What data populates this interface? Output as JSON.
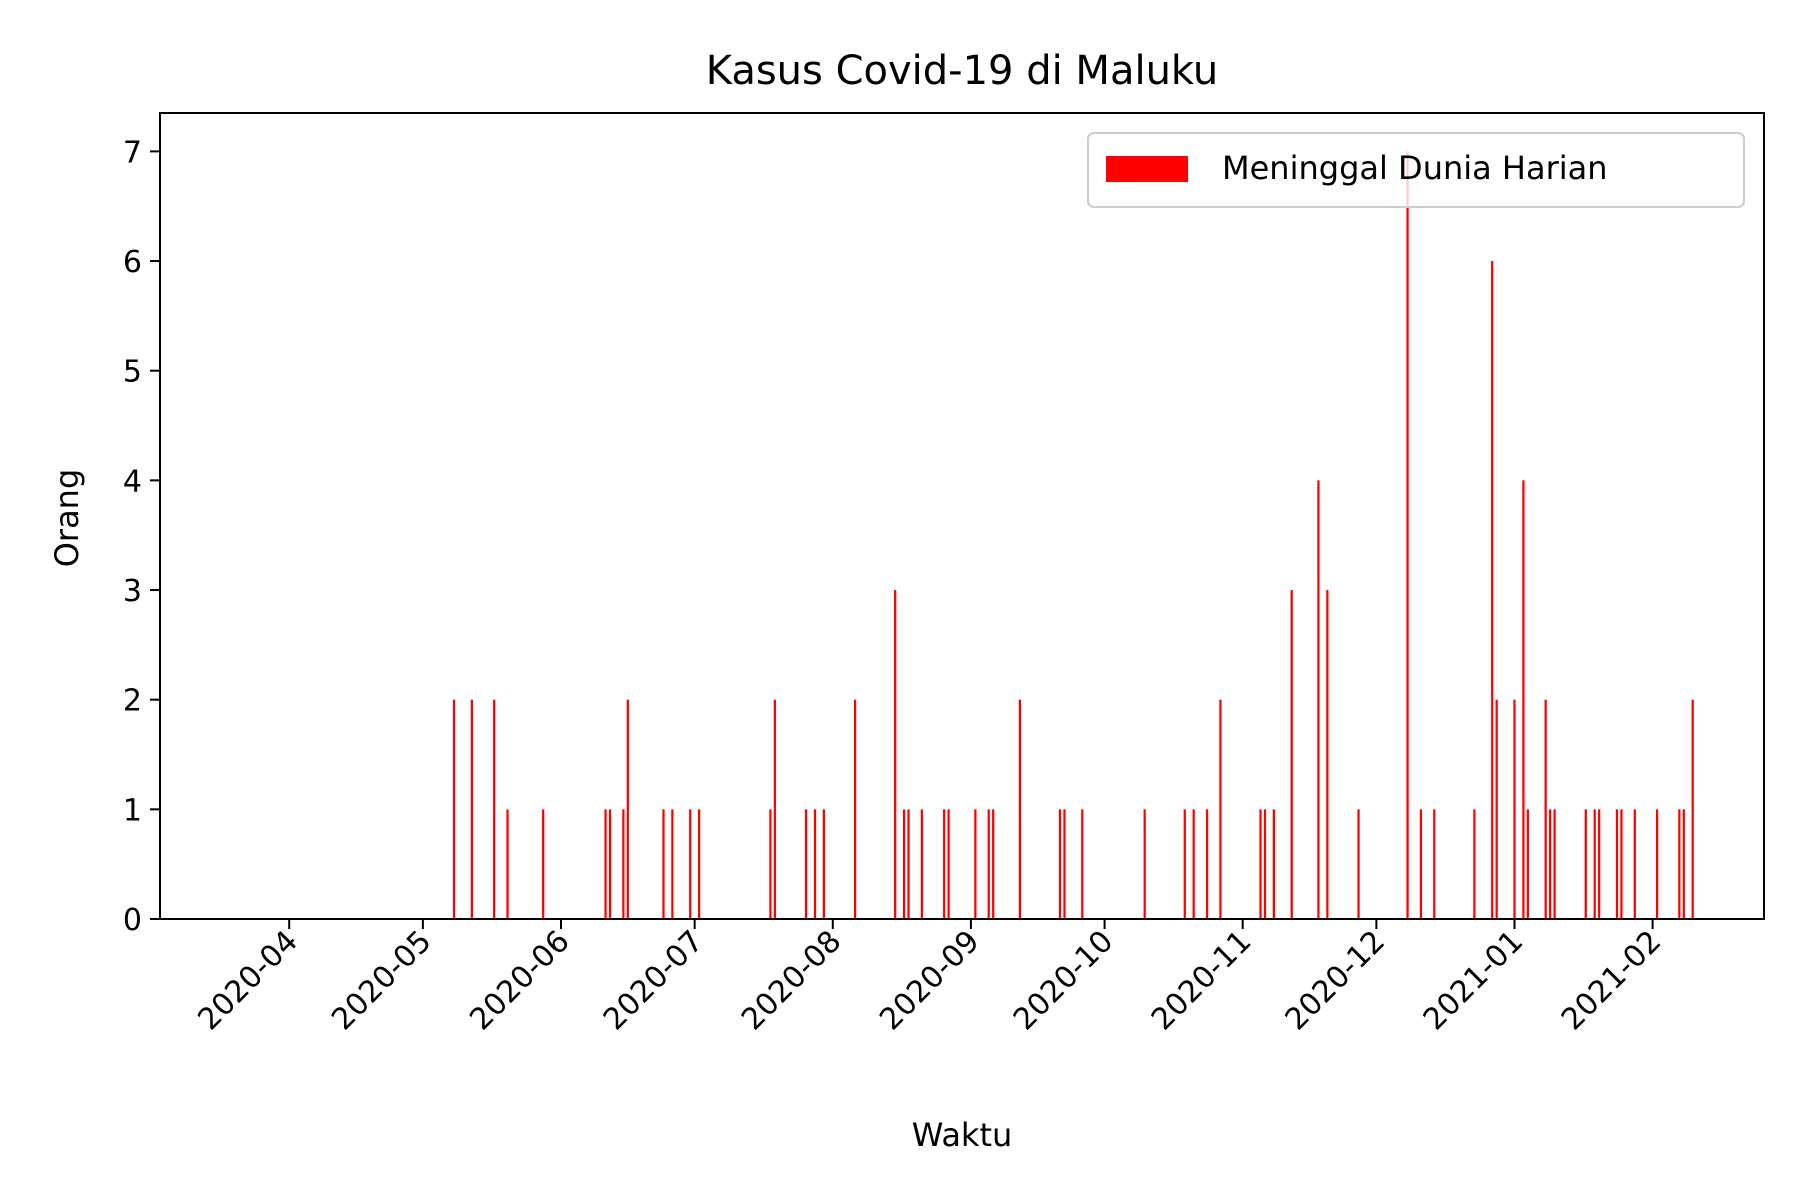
{
  "chart_data": {
    "type": "bar",
    "title": "Kasus Covid-19 di Maluku",
    "xlabel": "Waktu",
    "ylabel": "Orang",
    "x_axis": {
      "type": "date",
      "range": [
        "2020-03-03",
        "2021-02-26"
      ],
      "ticks": [
        "2020-04",
        "2020-05",
        "2020-06",
        "2020-07",
        "2020-08",
        "2020-09",
        "2020-10",
        "2020-11",
        "2020-12",
        "2021-01",
        "2021-02"
      ],
      "tick_dates": [
        "2020-04-01",
        "2020-05-01",
        "2020-06-01",
        "2020-07-01",
        "2020-08-01",
        "2020-09-01",
        "2020-10-01",
        "2020-11-01",
        "2020-12-01",
        "2021-01-01",
        "2021-02-01"
      ]
    },
    "ylim": [
      0,
      7.35
    ],
    "yticks": [
      0,
      1,
      2,
      3,
      4,
      5,
      6,
      7
    ],
    "grid": false,
    "legend": {
      "placement": "top-right"
    },
    "series": [
      {
        "name": "Meninggal Dunia Harian",
        "color": "#ff0000",
        "points": [
          [
            "2020-05-08",
            2
          ],
          [
            "2020-05-12",
            2
          ],
          [
            "2020-05-17",
            2
          ],
          [
            "2020-05-20",
            1
          ],
          [
            "2020-05-28",
            1
          ],
          [
            "2020-06-11",
            1
          ],
          [
            "2020-06-12",
            1
          ],
          [
            "2020-06-15",
            1
          ],
          [
            "2020-06-16",
            2
          ],
          [
            "2020-06-24",
            1
          ],
          [
            "2020-06-26",
            1
          ],
          [
            "2020-06-30",
            1
          ],
          [
            "2020-07-02",
            1
          ],
          [
            "2020-07-18",
            1
          ],
          [
            "2020-07-19",
            2
          ],
          [
            "2020-07-26",
            1
          ],
          [
            "2020-07-28",
            1
          ],
          [
            "2020-07-30",
            1
          ],
          [
            "2020-08-06",
            2
          ],
          [
            "2020-08-15",
            3
          ],
          [
            "2020-08-17",
            1
          ],
          [
            "2020-08-18",
            1
          ],
          [
            "2020-08-21",
            1
          ],
          [
            "2020-08-26",
            1
          ],
          [
            "2020-08-27",
            1
          ],
          [
            "2020-09-02",
            1
          ],
          [
            "2020-09-05",
            1
          ],
          [
            "2020-09-06",
            1
          ],
          [
            "2020-09-12",
            2
          ],
          [
            "2020-09-21",
            1
          ],
          [
            "2020-09-22",
            1
          ],
          [
            "2020-09-26",
            1
          ],
          [
            "2020-10-10",
            1
          ],
          [
            "2020-10-19",
            1
          ],
          [
            "2020-10-21",
            1
          ],
          [
            "2020-10-24",
            1
          ],
          [
            "2020-10-27",
            2
          ],
          [
            "2020-11-05",
            1
          ],
          [
            "2020-11-06",
            1
          ],
          [
            "2020-11-08",
            1
          ],
          [
            "2020-11-12",
            3
          ],
          [
            "2020-11-18",
            4
          ],
          [
            "2020-11-20",
            3
          ],
          [
            "2020-11-27",
            1
          ],
          [
            "2020-12-08",
            7
          ],
          [
            "2020-12-11",
            1
          ],
          [
            "2020-12-14",
            1
          ],
          [
            "2020-12-23",
            1
          ],
          [
            "2020-12-27",
            6
          ],
          [
            "2020-12-28",
            2
          ],
          [
            "2021-01-01",
            2
          ],
          [
            "2021-01-03",
            4
          ],
          [
            "2021-01-04",
            1
          ],
          [
            "2021-01-08",
            2
          ],
          [
            "2021-01-09",
            1
          ],
          [
            "2021-01-10",
            1
          ],
          [
            "2021-01-17",
            1
          ],
          [
            "2021-01-19",
            1
          ],
          [
            "2021-01-20",
            1
          ],
          [
            "2021-01-24",
            1
          ],
          [
            "2021-01-25",
            1
          ],
          [
            "2021-01-28",
            1
          ],
          [
            "2021-02-02",
            1
          ],
          [
            "2021-02-07",
            1
          ],
          [
            "2021-02-08",
            1
          ],
          [
            "2021-02-10",
            2
          ]
        ]
      }
    ]
  }
}
